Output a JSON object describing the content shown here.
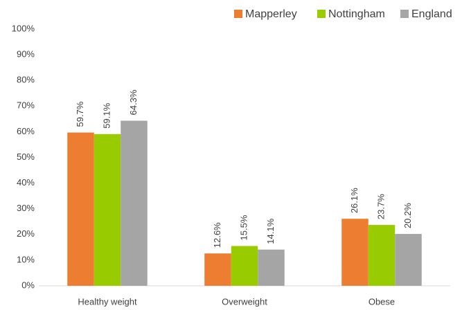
{
  "chart_data": {
    "type": "bar",
    "categories": [
      "Healthy weight",
      "Overweight",
      "Obese"
    ],
    "series": [
      {
        "name": "Mapperley",
        "color": "#ed7d31",
        "values": [
          59.7,
          12.6,
          26.1
        ],
        "value_labels": [
          "59.7%",
          "12.6%",
          "26.1%"
        ]
      },
      {
        "name": "Nottingham",
        "color": "#99cc00",
        "values": [
          59.1,
          15.5,
          23.7
        ],
        "value_labels": [
          "59.1%",
          "15.5%",
          "23.7%"
        ]
      },
      {
        "name": "England",
        "color": "#a5a5a5",
        "values": [
          64.3,
          14.1,
          20.2
        ],
        "value_labels": [
          "64.3%",
          "14.1%",
          "20.2%"
        ]
      }
    ],
    "ylim": [
      0,
      100
    ],
    "yticks": [
      {
        "value": 0,
        "label": "0%"
      },
      {
        "value": 10,
        "label": "10%"
      },
      {
        "value": 20,
        "label": "20%"
      },
      {
        "value": 30,
        "label": "30%"
      },
      {
        "value": 40,
        "label": "40%"
      },
      {
        "value": 50,
        "label": "50%"
      },
      {
        "value": 60,
        "label": "60%"
      },
      {
        "value": 70,
        "label": "70%"
      },
      {
        "value": 80,
        "label": "80%"
      },
      {
        "value": 90,
        "label": "90%"
      },
      {
        "value": 100,
        "label": "100%"
      }
    ],
    "grid": false,
    "legend": "top"
  }
}
